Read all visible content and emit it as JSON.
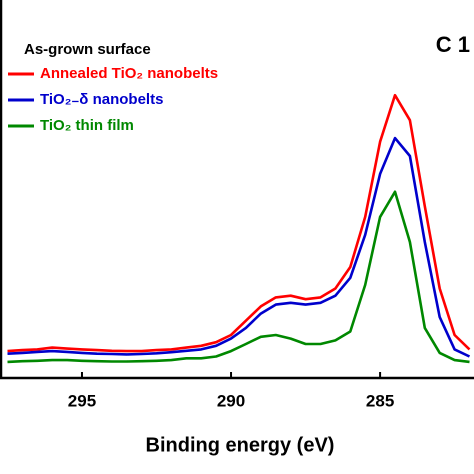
{
  "chart_data": {
    "type": "line",
    "title": "C 1",
    "legend_title": "As-grown surface",
    "xlabel": "Binding energy (eV)",
    "xlim": [
      297.75,
      281.85
    ],
    "xticks": [
      295,
      290,
      285
    ],
    "ylim": [
      0,
      100
    ],
    "x": [
      297.5,
      297,
      296.5,
      296,
      295.5,
      295,
      294.5,
      294,
      293.5,
      293,
      292.5,
      292,
      291.5,
      291,
      290.5,
      290,
      289.5,
      289,
      288.5,
      288,
      287.5,
      287,
      286.5,
      286,
      285.5,
      285,
      284.5,
      284,
      283.5,
      283,
      282.5,
      282
    ],
    "series": [
      {
        "name": "Annealed TiO₂ nanobelts",
        "color": "#ff0000",
        "values": [
          7.5,
          7.8,
          8,
          8.5,
          8.2,
          8,
          7.8,
          7.6,
          7.5,
          7.5,
          7.8,
          8,
          8.5,
          9,
          10,
          12,
          16,
          20,
          22.5,
          23,
          22,
          22.5,
          25,
          31,
          45,
          66,
          79,
          72,
          48,
          25,
          12,
          8
        ]
      },
      {
        "name": "TiO₂₋δ nanobelts",
        "color": "#0000cc",
        "values": [
          6.8,
          7,
          7.3,
          7.5,
          7.3,
          7,
          6.8,
          6.7,
          6.6,
          6.7,
          6.9,
          7.2,
          7.6,
          8,
          9,
          11,
          14,
          18,
          20.5,
          21,
          20.5,
          21,
          23,
          28,
          40,
          57,
          67,
          62,
          38,
          17,
          8,
          6
        ]
      },
      {
        "name": "TiO₂ thin film",
        "color": "#008800",
        "values": [
          4.5,
          4.7,
          4.8,
          5,
          5,
          4.8,
          4.7,
          4.6,
          4.6,
          4.7,
          4.8,
          5,
          5.5,
          5.5,
          6,
          7.5,
          9.5,
          11.5,
          12,
          11,
          9.5,
          9.5,
          10.5,
          13,
          26,
          45,
          52,
          38,
          14,
          7,
          5,
          4.5
        ]
      }
    ]
  }
}
